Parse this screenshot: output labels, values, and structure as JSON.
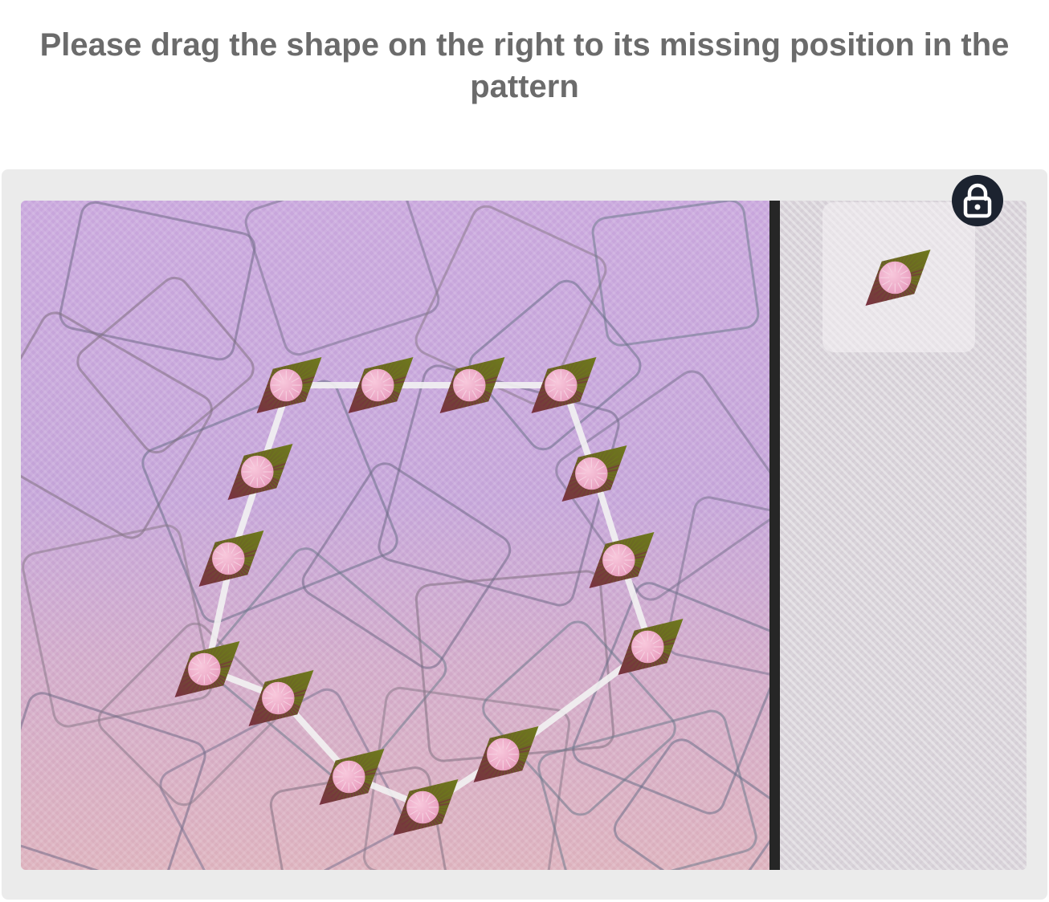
{
  "instruction": {
    "text": "Please drag the shape on the right to its missing position in the pattern"
  },
  "pattern": {
    "shape_icon": "spiky-shell-diamond-icon",
    "missing_count": 1,
    "placed_count": 14
  },
  "tray": {
    "lock_icon": "lock-icon"
  },
  "colors": {
    "instruction_text": "#6b6b6b",
    "panel": "#ebebeb",
    "pattern_background": "#c8a6dc",
    "divider": "#262626",
    "lock_button": "#1c2330",
    "shape_olive": "#6e6b1e",
    "shape_maroon": "#7a3a40",
    "shape_pink": "#f0a8c8",
    "connector": "#f2f2f2"
  }
}
